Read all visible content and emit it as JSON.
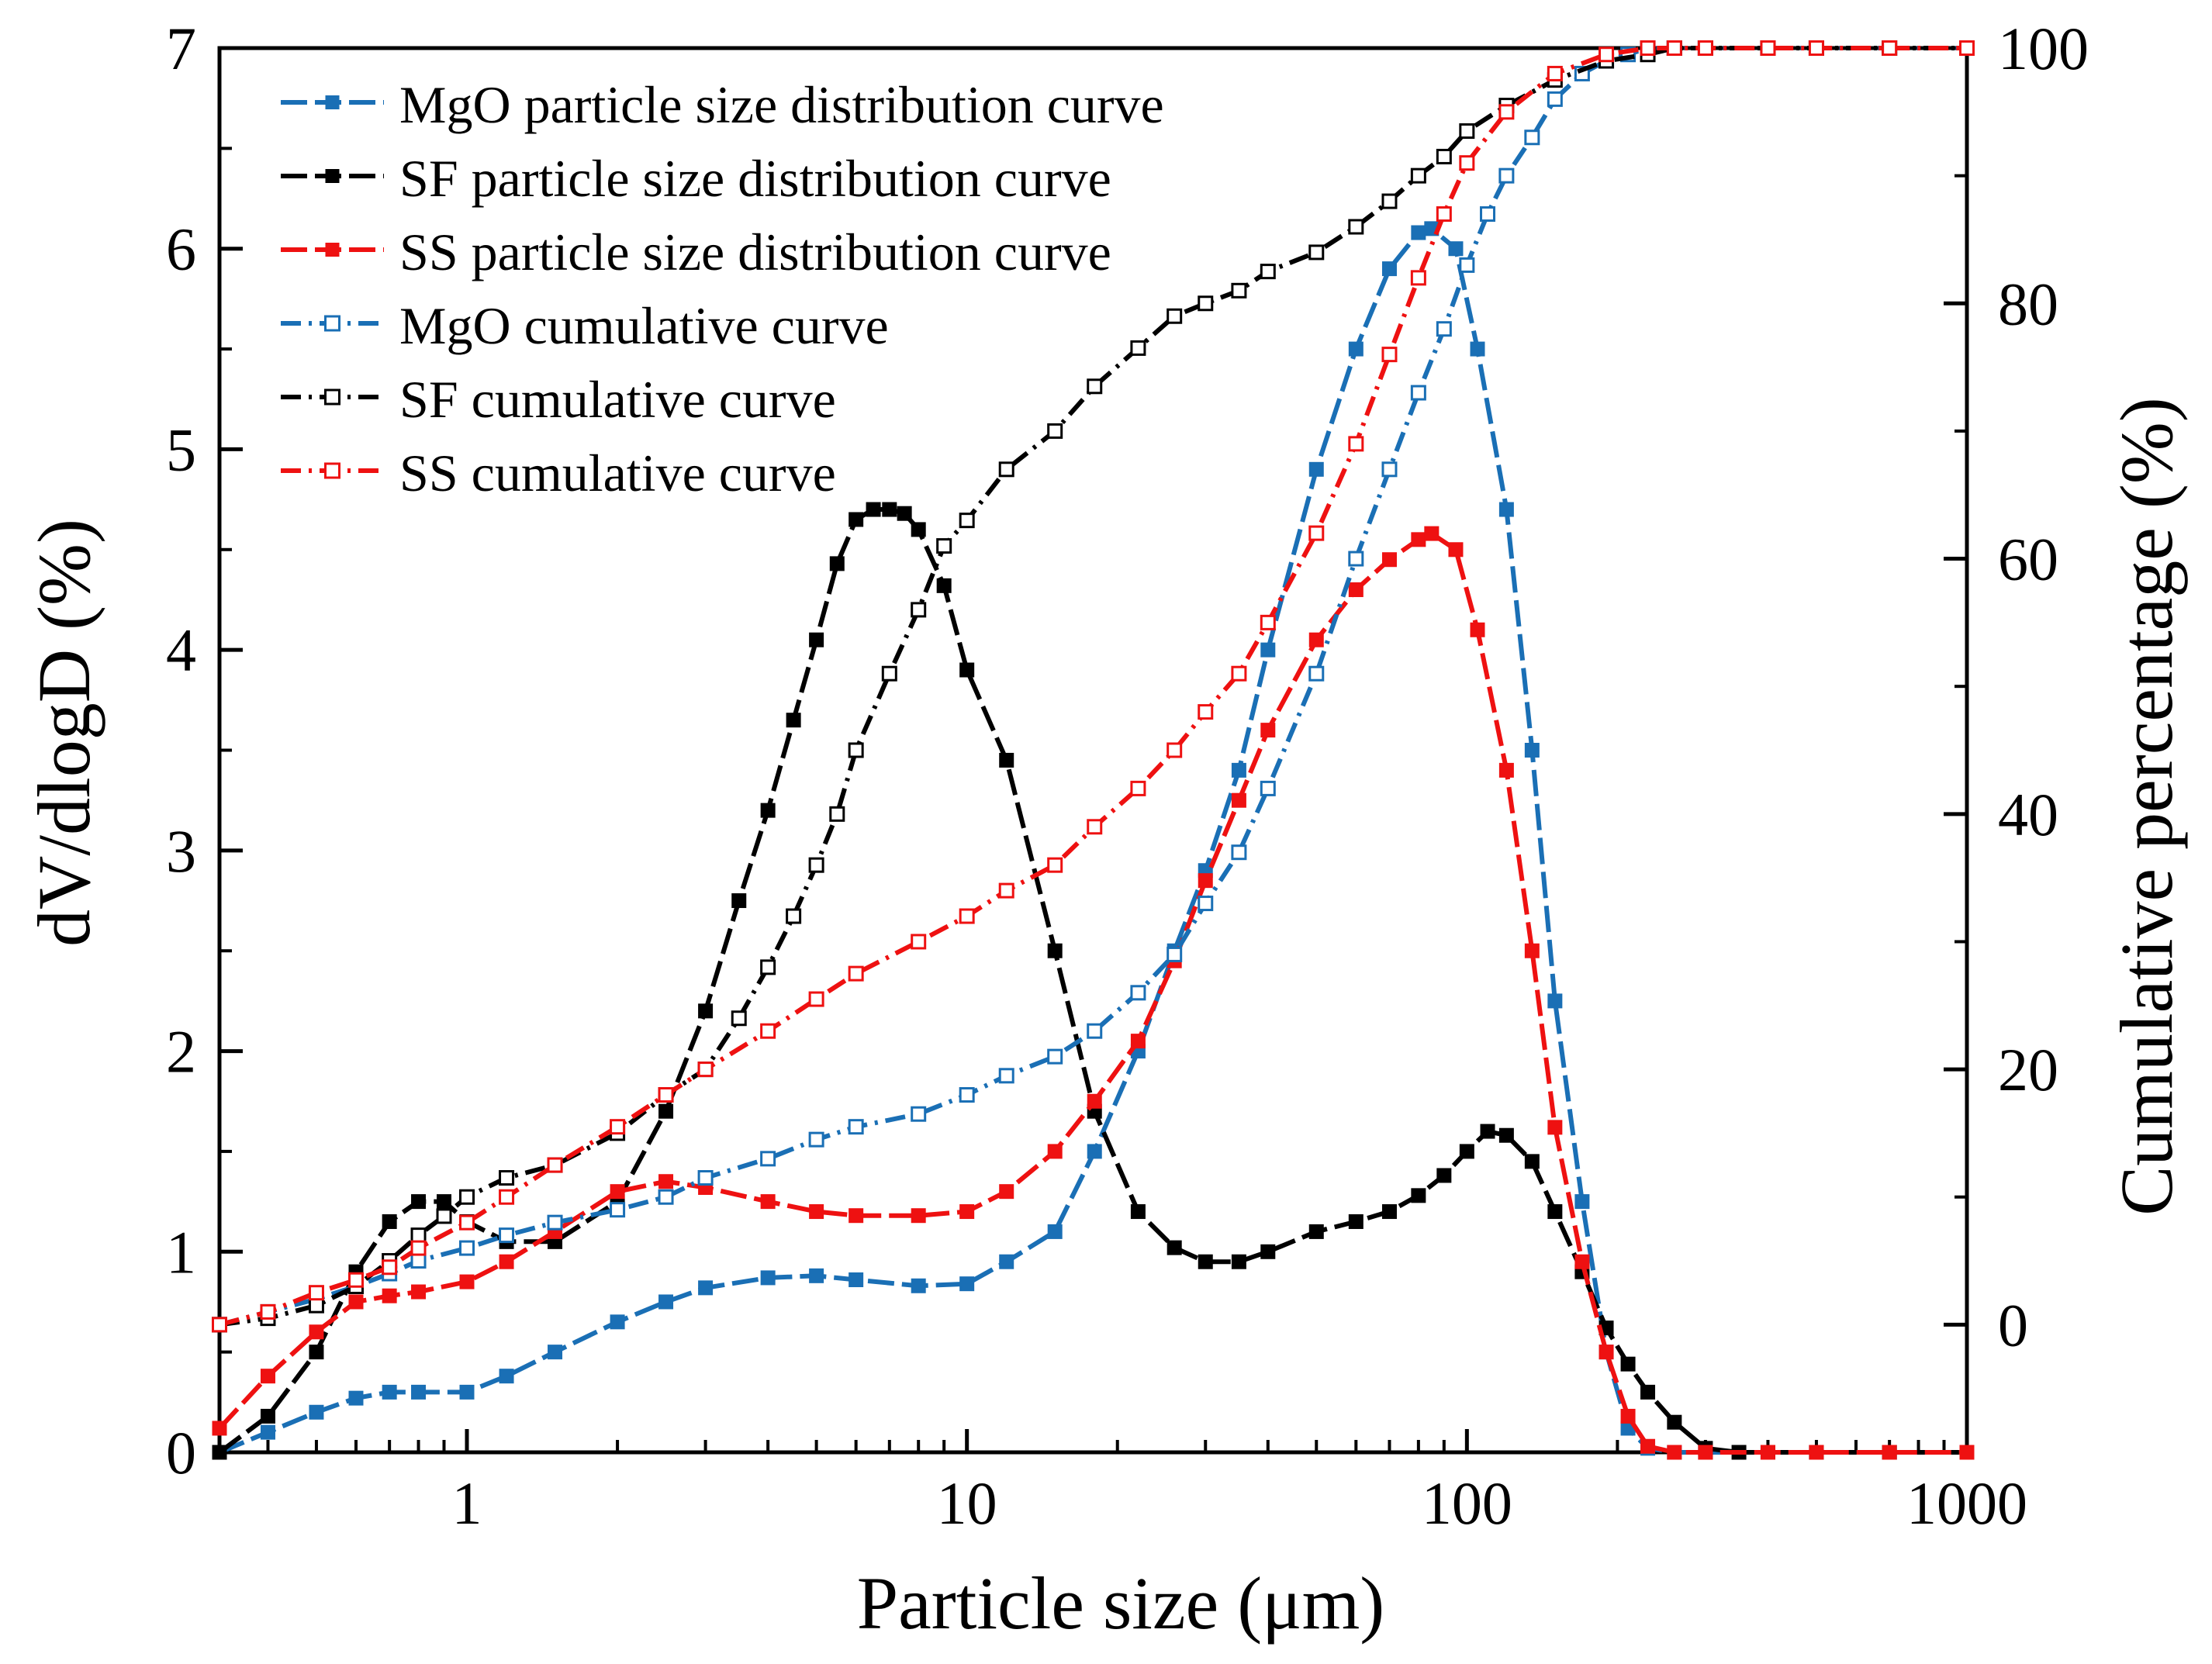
{
  "chart_data": {
    "type": "line",
    "xlabel": "Particle size (μm)",
    "ylabel_left": "dV/dlogD (%)",
    "ylabel_right": "Cumulative percentage (%)",
    "xscale": "log",
    "xlim": [
      0.32,
      1000
    ],
    "ylim_left": [
      0,
      7
    ],
    "ylim_right": [
      -10,
      100
    ],
    "xticks": [
      1,
      10,
      100,
      1000
    ],
    "xtick_labels": [
      "1",
      "10",
      "100",
      "1000"
    ],
    "yticks_left": [
      0,
      1,
      2,
      3,
      4,
      5,
      6,
      7
    ],
    "ytick_labels_left": [
      "0",
      "1",
      "2",
      "3",
      "4",
      "5",
      "6",
      "7"
    ],
    "yticks_right": [
      0,
      20,
      40,
      60,
      80,
      100
    ],
    "ytick_labels_right": [
      "0",
      "20",
      "40",
      "60",
      "80",
      "100"
    ],
    "legend_position": "top-left",
    "colors": {
      "MgO": "#1a6fb5",
      "SF": "#000000",
      "SS": "#ee1111"
    },
    "series": [
      {
        "name": "MgO particle size distribution curve",
        "axis": "left",
        "color": "#1a6fb5",
        "marker": "filled-square",
        "x": [
          0.32,
          0.4,
          0.5,
          0.6,
          0.7,
          0.8,
          1.0,
          1.2,
          1.5,
          2.0,
          2.5,
          3.0,
          4.0,
          5.0,
          6.0,
          8.0,
          10,
          12,
          15,
          18,
          22,
          26,
          30,
          35,
          40,
          50,
          60,
          70,
          80,
          85,
          95,
          105,
          120,
          135,
          150,
          170,
          190,
          210,
          230,
          260,
          300,
          400,
          500,
          700,
          1000
        ],
        "y": [
          0.0,
          0.1,
          0.2,
          0.27,
          0.3,
          0.3,
          0.3,
          0.38,
          0.5,
          0.65,
          0.75,
          0.82,
          0.87,
          0.88,
          0.86,
          0.83,
          0.84,
          0.95,
          1.1,
          1.5,
          2.0,
          2.5,
          2.9,
          3.4,
          4.0,
          4.9,
          5.5,
          5.9,
          6.08,
          6.1,
          6.0,
          5.5,
          4.7,
          3.5,
          2.25,
          1.25,
          0.5,
          0.12,
          0.02,
          0.0,
          0.0,
          0.0,
          0.0,
          0.0,
          0.0
        ]
      },
      {
        "name": "SF particle size distribution curve",
        "axis": "left",
        "color": "#000000",
        "marker": "filled-square",
        "x": [
          0.32,
          0.4,
          0.5,
          0.6,
          0.7,
          0.8,
          0.9,
          1.0,
          1.2,
          1.5,
          2.0,
          2.5,
          3.0,
          3.5,
          4.0,
          4.5,
          5.0,
          5.5,
          6.0,
          6.5,
          7.0,
          7.5,
          8.0,
          9.0,
          10,
          12,
          15,
          18,
          22,
          26,
          30,
          35,
          40,
          50,
          60,
          70,
          80,
          90,
          100,
          110,
          120,
          135,
          150,
          170,
          190,
          210,
          230,
          260,
          300,
          350,
          400,
          500,
          700,
          1000
        ],
        "y": [
          0.0,
          0.18,
          0.5,
          0.9,
          1.15,
          1.25,
          1.25,
          1.15,
          1.05,
          1.05,
          1.25,
          1.7,
          2.2,
          2.75,
          3.2,
          3.65,
          4.05,
          4.43,
          4.65,
          4.7,
          4.7,
          4.68,
          4.6,
          4.32,
          3.9,
          3.45,
          2.5,
          1.7,
          1.2,
          1.02,
          0.95,
          0.95,
          1.0,
          1.1,
          1.15,
          1.2,
          1.28,
          1.38,
          1.5,
          1.6,
          1.58,
          1.45,
          1.2,
          0.9,
          0.62,
          0.44,
          0.3,
          0.15,
          0.02,
          0.0,
          0.0,
          0.0,
          0.0,
          0.0
        ]
      },
      {
        "name": "SS particle size distribution curve",
        "axis": "left",
        "color": "#ee1111",
        "marker": "filled-square",
        "x": [
          0.32,
          0.4,
          0.5,
          0.6,
          0.7,
          0.8,
          1.0,
          1.2,
          1.5,
          2.0,
          2.5,
          3.0,
          4.0,
          5.0,
          6.0,
          8.0,
          10,
          12,
          15,
          18,
          22,
          26,
          30,
          35,
          40,
          50,
          60,
          70,
          80,
          85,
          95,
          105,
          120,
          135,
          150,
          170,
          190,
          210,
          230,
          260,
          300,
          400,
          500,
          700,
          1000
        ],
        "y": [
          0.12,
          0.38,
          0.6,
          0.75,
          0.78,
          0.8,
          0.85,
          0.95,
          1.1,
          1.3,
          1.35,
          1.32,
          1.25,
          1.2,
          1.18,
          1.18,
          1.2,
          1.3,
          1.5,
          1.75,
          2.05,
          2.45,
          2.85,
          3.25,
          3.6,
          4.05,
          4.3,
          4.45,
          4.55,
          4.58,
          4.5,
          4.1,
          3.4,
          2.5,
          1.62,
          0.95,
          0.5,
          0.18,
          0.03,
          0.0,
          0.0,
          0.0,
          0.0,
          0.0,
          0.0
        ]
      },
      {
        "name": "MgO cumulative curve",
        "axis": "right",
        "color": "#1a6fb5",
        "marker": "open-square",
        "x": [
          0.32,
          0.4,
          0.5,
          0.6,
          0.7,
          0.8,
          1.0,
          1.2,
          1.5,
          2.0,
          2.5,
          3.0,
          4.0,
          5.0,
          6.0,
          8.0,
          10,
          12,
          15,
          18,
          22,
          26,
          30,
          35,
          40,
          50,
          60,
          70,
          80,
          90,
          100,
          110,
          120,
          135,
          150,
          170,
          190,
          210,
          230,
          260,
          300,
          400,
          500,
          700,
          1000
        ],
        "y": [
          0.0,
          1.0,
          2.0,
          3.0,
          4.0,
          5.0,
          6.0,
          7.0,
          8.0,
          9.0,
          10.0,
          11.5,
          13.0,
          14.5,
          15.5,
          16.5,
          18.0,
          19.5,
          21.0,
          23.0,
          26.0,
          29.0,
          33.0,
          37.0,
          42.0,
          51.0,
          60.0,
          67.0,
          73.0,
          78.0,
          83.0,
          87.0,
          90.0,
          93.0,
          96.0,
          98.0,
          99.0,
          99.5,
          100.0,
          100.0,
          100.0,
          100.0,
          100.0,
          100.0,
          100.0
        ]
      },
      {
        "name": "SF cumulative curve",
        "axis": "right",
        "color": "#000000",
        "marker": "open-square",
        "x": [
          0.32,
          0.4,
          0.5,
          0.6,
          0.7,
          0.8,
          0.9,
          1.0,
          1.2,
          1.5,
          2.0,
          2.5,
          3.0,
          3.5,
          4.0,
          4.5,
          5.0,
          5.5,
          6.0,
          7.0,
          8.0,
          9.0,
          10,
          12,
          15,
          18,
          22,
          26,
          30,
          35,
          40,
          50,
          60,
          70,
          80,
          90,
          100,
          120,
          150,
          190,
          230,
          260,
          300,
          400,
          500,
          700,
          1000
        ],
        "y": [
          0.0,
          0.5,
          1.5,
          3.0,
          5.0,
          7.0,
          8.5,
          10.0,
          11.5,
          12.5,
          15.0,
          18.0,
          20.0,
          24.0,
          28.0,
          32.0,
          36.0,
          40.0,
          45.0,
          51.0,
          56.0,
          61.0,
          63.0,
          67.0,
          70.0,
          73.5,
          76.5,
          79.0,
          80.0,
          81.0,
          82.5,
          84.0,
          86.0,
          88.0,
          90.0,
          91.5,
          93.5,
          95.5,
          97.5,
          99.0,
          99.5,
          100.0,
          100.0,
          100.0,
          100.0,
          100.0,
          100.0
        ]
      },
      {
        "name": "SS cumulative curve",
        "axis": "right",
        "color": "#ee1111",
        "marker": "open-square",
        "x": [
          0.32,
          0.4,
          0.5,
          0.6,
          0.7,
          0.8,
          1.0,
          1.2,
          1.5,
          2.0,
          2.5,
          3.0,
          4.0,
          5.0,
          6.0,
          8.0,
          10,
          12,
          15,
          18,
          22,
          26,
          30,
          35,
          40,
          50,
          60,
          70,
          80,
          90,
          100,
          120,
          150,
          190,
          230,
          260,
          300,
          400,
          500,
          700,
          1000
        ],
        "y": [
          0.0,
          1.0,
          2.5,
          3.5,
          4.5,
          6.0,
          8.0,
          10.0,
          12.5,
          15.5,
          18.0,
          20.0,
          23.0,
          25.5,
          27.5,
          30.0,
          32.0,
          34.0,
          36.0,
          39.0,
          42.0,
          45.0,
          48.0,
          51.0,
          55.0,
          62.0,
          69.0,
          76.0,
          82.0,
          87.0,
          91.0,
          95.0,
          98.0,
          99.5,
          100.0,
          100.0,
          100.0,
          100.0,
          100.0,
          100.0,
          100.0
        ]
      }
    ]
  }
}
